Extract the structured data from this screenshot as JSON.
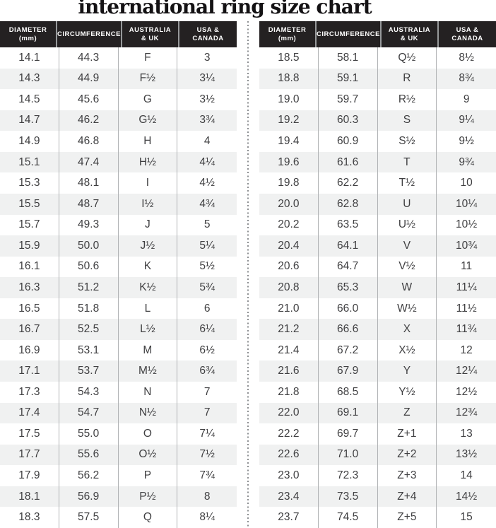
{
  "title": "international ring size chart",
  "table": {
    "headers": [
      {
        "label": "DIAMETER (mm)",
        "lines": [
          "DIAMETER",
          "(mm)"
        ]
      },
      {
        "label": "CIRCUMFERENCE",
        "lines": [
          "CIRCUMFERENCE"
        ]
      },
      {
        "label": "AUSTRALIA & UK",
        "lines": [
          "AUSTRALIA",
          "& UK"
        ]
      },
      {
        "label": "USA & CANADA",
        "lines": [
          "USA &",
          "CANADA"
        ]
      }
    ]
  },
  "chart_data": {
    "type": "table",
    "title": "international ring size chart",
    "columns": [
      "DIAMETER (mm)",
      "CIRCUMFERENCE",
      "AUSTRALIA & UK",
      "USA & CANADA"
    ],
    "tables": [
      {
        "name": "left-panel",
        "rows": [
          [
            "14.1",
            "44.3",
            "F",
            "3"
          ],
          [
            "14.3",
            "44.9",
            "F½",
            "3¼"
          ],
          [
            "14.5",
            "45.6",
            "G",
            "3½"
          ],
          [
            "14.7",
            "46.2",
            "G½",
            "3¾"
          ],
          [
            "14.9",
            "46.8",
            "H",
            "4"
          ],
          [
            "15.1",
            "47.4",
            "H½",
            "4¼"
          ],
          [
            "15.3",
            "48.1",
            "I",
            "4½"
          ],
          [
            "15.5",
            "48.7",
            "I½",
            "4¾"
          ],
          [
            "15.7",
            "49.3",
            "J",
            "5"
          ],
          [
            "15.9",
            "50.0",
            "J½",
            "5¼"
          ],
          [
            "16.1",
            "50.6",
            "K",
            "5½"
          ],
          [
            "16.3",
            "51.2",
            "K½",
            "5¾"
          ],
          [
            "16.5",
            "51.8",
            "L",
            "6"
          ],
          [
            "16.7",
            "52.5",
            "L½",
            "6¼"
          ],
          [
            "16.9",
            "53.1",
            "M",
            "6½"
          ],
          [
            "17.1",
            "53.7",
            "M½",
            "6¾"
          ],
          [
            "17.3",
            "54.3",
            "N",
            "7"
          ],
          [
            "17.4",
            "54.7",
            "N½",
            "7"
          ],
          [
            "17.5",
            "55.0",
            "O",
            "7¼"
          ],
          [
            "17.7",
            "55.6",
            "O½",
            "7½"
          ],
          [
            "17.9",
            "56.2",
            "P",
            "7¾"
          ],
          [
            "18.1",
            "56.9",
            "P½",
            "8"
          ],
          [
            "18.3",
            "57.5",
            "Q",
            "8¼"
          ]
        ]
      },
      {
        "name": "right-panel",
        "rows": [
          [
            "18.5",
            "58.1",
            "Q½",
            "8½"
          ],
          [
            "18.8",
            "59.1",
            "R",
            "8¾"
          ],
          [
            "19.0",
            "59.7",
            "R½",
            "9"
          ],
          [
            "19.2",
            "60.3",
            "S",
            "9¼"
          ],
          [
            "19.4",
            "60.9",
            "S½",
            "9½"
          ],
          [
            "19.6",
            "61.6",
            "T",
            "9¾"
          ],
          [
            "19.8",
            "62.2",
            "T½",
            "10"
          ],
          [
            "20.0",
            "62.8",
            "U",
            "10¼"
          ],
          [
            "20.2",
            "63.5",
            "U½",
            "10½"
          ],
          [
            "20.4",
            "64.1",
            "V",
            "10¾"
          ],
          [
            "20.6",
            "64.7",
            "V½",
            "11"
          ],
          [
            "20.8",
            "65.3",
            "W",
            "11¼"
          ],
          [
            "21.0",
            "66.0",
            "W½",
            "11½"
          ],
          [
            "21.2",
            "66.6",
            "X",
            "11¾"
          ],
          [
            "21.4",
            "67.2",
            "X½",
            "12"
          ],
          [
            "21.6",
            "67.9",
            "Y",
            "12¼"
          ],
          [
            "21.8",
            "68.5",
            "Y½",
            "12½"
          ],
          [
            "22.0",
            "69.1",
            "Z",
            "12¾"
          ],
          [
            "22.2",
            "69.7",
            "Z+1",
            "13"
          ],
          [
            "22.6",
            "71.0",
            "Z+2",
            "13½"
          ],
          [
            "23.0",
            "72.3",
            "Z+3",
            "14"
          ],
          [
            "23.4",
            "73.5",
            "Z+4",
            "14½"
          ],
          [
            "23.7",
            "74.5",
            "Z+5",
            "15"
          ]
        ]
      }
    ]
  },
  "theme": {
    "header_bg": "#242122",
    "row_alt_bg": "#f0f1f1",
    "cell_text": "#3f3f41",
    "divider_color": "#8e9093"
  }
}
